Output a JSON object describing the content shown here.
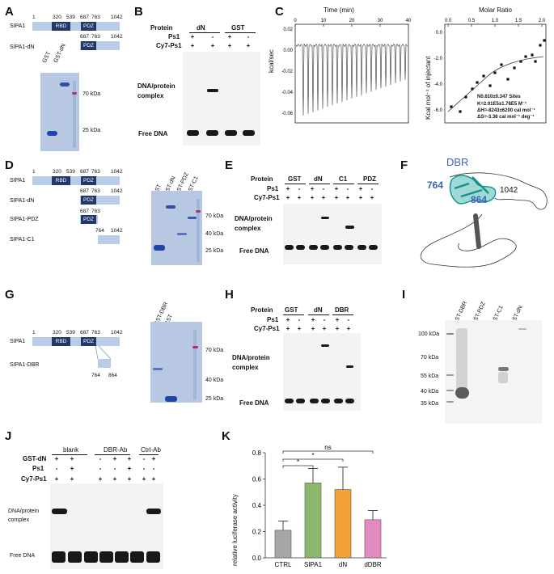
{
  "panels": {
    "A": {
      "label": "A",
      "rows": [
        {
          "name": "SIPA1",
          "nums": [
            "1",
            "320",
            "539",
            "687",
            "763",
            "1042"
          ],
          "domains": [
            "RBD",
            "PDZ"
          ]
        },
        {
          "name": "SIPA1-dN",
          "nums": [
            "687",
            "763",
            "1042"
          ],
          "domains": [
            "PDZ"
          ]
        }
      ],
      "gel_lanes": [
        "GST",
        "GST-dN"
      ],
      "markers": [
        "70 kDa",
        "25 kDa"
      ]
    },
    "B": {
      "label": "B",
      "protein_label": "Protein",
      "groups": [
        "dN",
        "GST"
      ],
      "rows": [
        {
          "name": "Ps1",
          "values": [
            "+",
            "-",
            "+",
            "-"
          ]
        },
        {
          "name": "Cy7-Ps1",
          "values": [
            "+",
            "+",
            "+",
            "+"
          ]
        }
      ],
      "complex_label": [
        "DNA/protein",
        "complex"
      ],
      "free_label": "Free DNA"
    },
    "C": {
      "label": "C",
      "left": {
        "top_axis": "Time (min)",
        "ylabel": "kcal/sec",
        "xticks": [
          "0",
          "10",
          "20",
          "30",
          "40"
        ],
        "yticks": [
          "0.02",
          "0.00",
          "-0.02",
          "-0.04",
          "-0.06"
        ]
      },
      "right": {
        "top_axis": "Molar Ratio",
        "ylabel": "Kcal mol⁻¹ of injectant",
        "xticks": [
          "0.0",
          "0.5",
          "1.0",
          "1.5",
          "2.0"
        ],
        "yticks": [
          "0.0",
          "-2.0",
          "-4.0",
          "-6.0"
        ],
        "stats": [
          "N0.610±0.347 Sites",
          "K=2.01E5±1.78E5 M⁻¹",
          "ΔH=-8243±6200 cal mol⁻¹",
          "ΔS=-3.38 cal mol⁻¹ deg⁻¹"
        ]
      }
    },
    "D": {
      "label": "D",
      "rows": [
        {
          "name": "SIPA1",
          "nums": [
            "1",
            "320",
            "539",
            "687",
            "763",
            "1042"
          ],
          "domains": [
            "RBD",
            "PDZ"
          ]
        },
        {
          "name": "SIPA1-dN",
          "nums": [
            "687",
            "763",
            "1042"
          ],
          "domains": [
            "PDZ"
          ]
        },
        {
          "name": "SIPA1-PDZ",
          "nums": [
            "687",
            "763"
          ],
          "domains": [
            "PDZ"
          ]
        },
        {
          "name": "SIPA1-C1",
          "nums": [
            "764",
            "1042"
          ],
          "domains": []
        }
      ],
      "gel_lanes": [
        "GST",
        "GST-dN",
        "GST-PDZ",
        "GST-C1"
      ],
      "markers": [
        "70 kDa",
        "40 kDa",
        "25 kDa"
      ]
    },
    "E": {
      "label": "E",
      "protein_label": "Protein",
      "groups": [
        "GST",
        "dN",
        "C1",
        "PDZ"
      ],
      "rows": [
        {
          "name": "Ps1",
          "values": [
            "+",
            "-",
            "+",
            "-",
            "+",
            "-",
            "+",
            "-"
          ]
        },
        {
          "name": "Cy7-Ps1",
          "values": [
            "+",
            "+",
            "+",
            "+",
            "+",
            "+",
            "+",
            "+"
          ]
        }
      ],
      "complex_label": [
        "DNA/protein",
        "complex"
      ],
      "free_label": "Free DNA"
    },
    "F": {
      "label": "F",
      "title": "DBR",
      "labels": [
        "764",
        "864",
        "1042"
      ]
    },
    "G": {
      "label": "G",
      "rows": [
        {
          "name": "SIPA1",
          "nums": [
            "1",
            "320",
            "539",
            "687",
            "763",
            "1042"
          ],
          "domains": [
            "RBD",
            "PDZ"
          ]
        },
        {
          "name": "SIPA1-DBR",
          "nums": [
            "764",
            "864"
          ],
          "domains": []
        }
      ],
      "gel_lanes": [
        "GST-DBR",
        "GST"
      ],
      "markers": [
        "70 kDa",
        "40 kDa",
        "25 kDa"
      ]
    },
    "H": {
      "label": "H",
      "protein_label": "Protein",
      "groups": [
        "GST",
        "dN",
        "DBR"
      ],
      "rows": [
        {
          "name": "Ps1",
          "values": [
            "+",
            "-",
            "+",
            "-",
            "+",
            "-"
          ]
        },
        {
          "name": "Cy7-Ps1",
          "values": [
            "+",
            "+",
            "+",
            "+",
            "+",
            "+"
          ]
        }
      ],
      "complex_label": [
        "DNA/protein",
        "complex"
      ],
      "free_label": "Free DNA"
    },
    "I": {
      "label": "I",
      "lanes": [
        "GST-DBR",
        "GST-PDZ",
        "GST-C1",
        "GST-dN"
      ],
      "markers": [
        "100 kDa",
        "70 kDa",
        "55 kDa",
        "40 kDa",
        "35 kDa"
      ]
    },
    "J": {
      "label": "J",
      "groups": [
        "blank",
        "DBR-Ab",
        "Ctrl-Ab"
      ],
      "rows": [
        {
          "name": "GST-dN",
          "values": [
            "+",
            "+",
            "-",
            "+",
            "+",
            "-",
            "+"
          ]
        },
        {
          "name": "Ps1",
          "values": [
            "-",
            "+",
            "-",
            "-",
            "+",
            "-",
            "-"
          ]
        },
        {
          "name": "Cy7-Ps1",
          "values": [
            "+",
            "+",
            "+",
            "+",
            "+",
            "+",
            "+"
          ]
        }
      ],
      "complex_label": [
        "DNA/protein",
        "complex"
      ],
      "free_label": "Free DNA"
    },
    "K": {
      "label": "K",
      "sig": [
        "ns",
        "*",
        "*"
      ]
    }
  },
  "chart_data": {
    "type": "bar",
    "categories": [
      "CTRL",
      "SIPA1",
      "dN",
      "dDBR"
    ],
    "values": [
      0.21,
      0.57,
      0.52,
      0.29
    ],
    "errors": [
      0.07,
      0.11,
      0.17,
      0.07
    ],
    "colors": [
      "#a6a6a6",
      "#8db86b",
      "#f5a13a",
      "#e38bbf"
    ],
    "ylabel": "relative luciferase activity",
    "yticks": [
      "0.0",
      "0.2",
      "0.4",
      "0.6",
      "0.8"
    ],
    "ylim": [
      0,
      0.8
    ]
  }
}
